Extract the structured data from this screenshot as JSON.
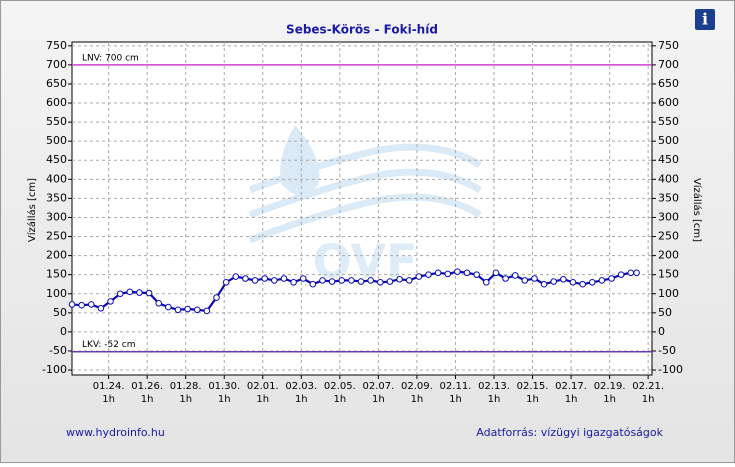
{
  "chart_data": {
    "type": "line",
    "title": "Sebes-Körös - Foki-híd",
    "y_label": "Vízállás [cm]",
    "y2_label": "Vízállás [cm]",
    "x": [
      0.1,
      0.6,
      1.1,
      1.6,
      2.1,
      2.6,
      3.1,
      3.6,
      4.1,
      4.6,
      5.1,
      5.6,
      6.1,
      6.6,
      7.1,
      7.6,
      8.1,
      8.6,
      9.1,
      9.6,
      10.1,
      10.6,
      11.1,
      11.6,
      12.1,
      12.6,
      13.1,
      13.6,
      14.1,
      14.6,
      15.1,
      15.6,
      16.1,
      16.6,
      17.1,
      17.6,
      18.1,
      18.6,
      19.1,
      19.6,
      20.1,
      20.6,
      21.1,
      21.6,
      22.1,
      22.6,
      23.1,
      23.6,
      24.1,
      24.6,
      25.1,
      25.6,
      26.1,
      26.6,
      27.1,
      27.6,
      28.1,
      28.6,
      29.1,
      29.4
    ],
    "series": [
      {
        "name": "Vízállás",
        "color": "#0a0ab4",
        "values": [
          72,
          70,
          72,
          62,
          80,
          100,
          105,
          103,
          102,
          75,
          65,
          58,
          60,
          58,
          55,
          90,
          130,
          145,
          140,
          135,
          140,
          135,
          140,
          130,
          140,
          125,
          135,
          132,
          135,
          135,
          132,
          135,
          130,
          132,
          138,
          135,
          145,
          150,
          155,
          152,
          158,
          155,
          150,
          130,
          155,
          140,
          148,
          135,
          140,
          125,
          132,
          138,
          130,
          125,
          130,
          135,
          140,
          150,
          155,
          155
        ]
      }
    ],
    "xlim": [
      0.1,
      30.2
    ],
    "xticks": [
      {
        "value": 2,
        "label": "01.24."
      },
      {
        "value": 4,
        "label": "01.26."
      },
      {
        "value": 6,
        "label": "01.28."
      },
      {
        "value": 8,
        "label": "01.30."
      },
      {
        "value": 10,
        "label": "02.01."
      },
      {
        "value": 12,
        "label": "02.03."
      },
      {
        "value": 14,
        "label": "02.05."
      },
      {
        "value": 16,
        "label": "02.07."
      },
      {
        "value": 18,
        "label": "02.09."
      },
      {
        "value": 20,
        "label": "02.11."
      },
      {
        "value": 22,
        "label": "02.13."
      },
      {
        "value": 24,
        "label": "02.15."
      },
      {
        "value": 26,
        "label": "02.17."
      },
      {
        "value": 28,
        "label": "02.19."
      },
      {
        "value": 30,
        "label": "02.21."
      }
    ],
    "xtick_sublabel": "1h",
    "ylim": [
      -113,
      760
    ],
    "yticks": [
      -100,
      -50,
      0,
      50,
      100,
      150,
      200,
      250,
      300,
      350,
      400,
      450,
      500,
      550,
      600,
      650,
      700,
      750
    ],
    "y2lim": [
      -113,
      760
    ],
    "y2ticks": [
      -100,
      -50,
      0,
      50,
      100,
      150,
      200,
      250,
      300,
      350,
      400,
      450,
      500,
      550,
      600,
      650,
      700,
      750
    ],
    "reference_lines": [
      {
        "label": "LNV: 700 cm",
        "value": 700,
        "color": "#d040d0"
      },
      {
        "label": "LKV: -52 cm",
        "value": -52,
        "color": "#6a3ab0"
      }
    ],
    "grid": true,
    "watermark": "OVF",
    "footer_left": "www.hydroinfo.hu",
    "footer_right": "Adatforrás: vízügyi igazgatóságok",
    "info_icon": "i"
  }
}
